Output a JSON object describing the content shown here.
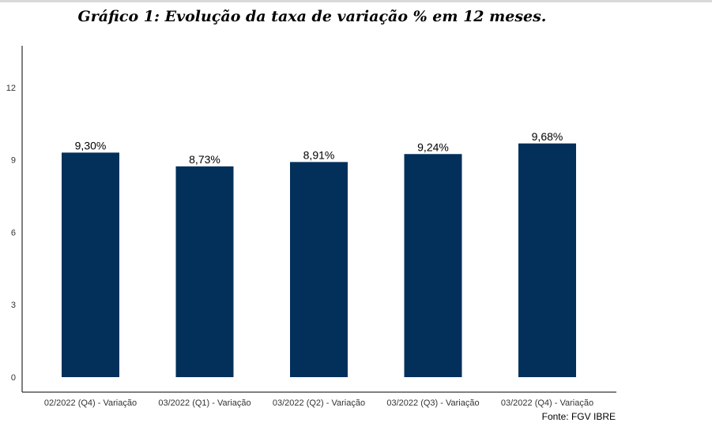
{
  "chart_data": {
    "type": "bar",
    "title": "Gráfico 1: Evolução da taxa de variação % em 12 meses.",
    "xlabel": "",
    "ylabel": "",
    "categories": [
      "02/2022 (Q4) - Variação",
      "03/2022 (Q1) - Variação",
      "03/2022 (Q2) - Variação",
      "03/2022 (Q3) - Variação",
      "03/2022 (Q4) - Variação"
    ],
    "values": [
      9.3,
      8.73,
      8.91,
      9.24,
      9.68
    ],
    "data_labels": [
      "9,30%",
      "8,73%",
      "8,91%",
      "9,24%",
      "9,68%"
    ],
    "ylim": [
      0,
      14
    ],
    "yticks": [
      0,
      3,
      6,
      9,
      12
    ],
    "grid": false,
    "legend": "none",
    "bar_color": "#03305a",
    "source": "Fonte: FGV IBRE"
  }
}
